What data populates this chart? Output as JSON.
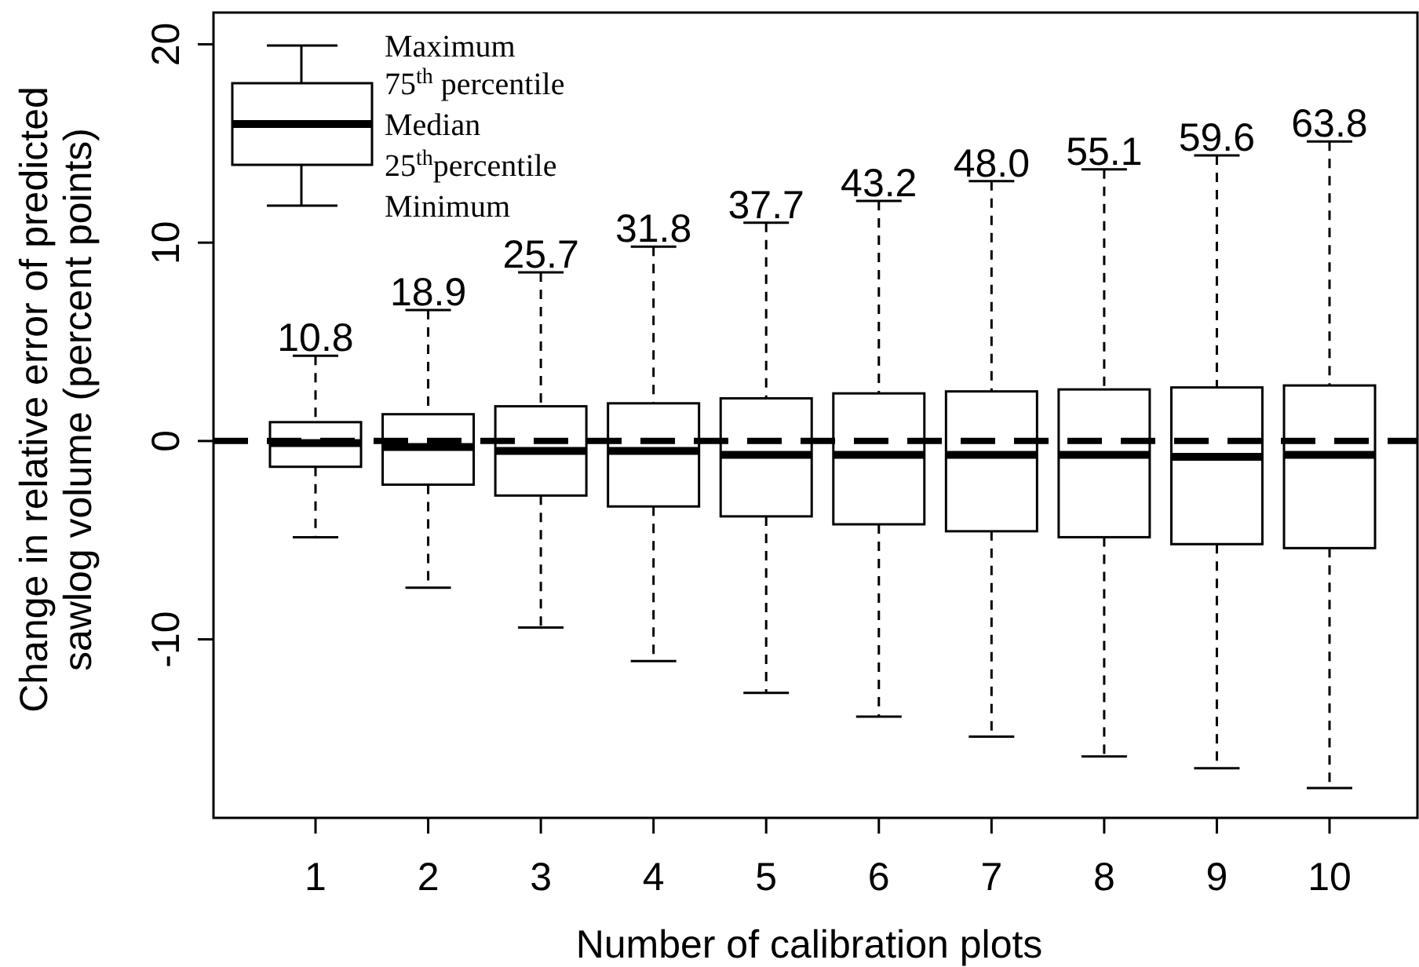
{
  "chart_data": {
    "type": "box",
    "xlabel": "Number of calibration plots",
    "ylabel": "Change in relative error of predicted\nsawlog volume (percent points)",
    "categories": [
      "1",
      "2",
      "3",
      "4",
      "5",
      "6",
      "7",
      "8",
      "9",
      "10"
    ],
    "boxes": [
      {
        "low": -4.85,
        "q1": -1.3,
        "median": -0.1,
        "q3": 0.95,
        "high": 4.3
      },
      {
        "low": -7.4,
        "q1": -2.2,
        "median": -0.3,
        "q3": 1.35,
        "high": 6.6
      },
      {
        "low": -9.4,
        "q1": -2.75,
        "median": -0.5,
        "q3": 1.75,
        "high": 8.5
      },
      {
        "low": -11.1,
        "q1": -3.3,
        "median": -0.5,
        "q3": 1.9,
        "high": 9.8
      },
      {
        "low": -12.7,
        "q1": -3.8,
        "median": -0.7,
        "q3": 2.15,
        "high": 11.0
      },
      {
        "low": -13.9,
        "q1": -4.2,
        "median": -0.7,
        "q3": 2.4,
        "high": 12.1
      },
      {
        "low": -14.9,
        "q1": -4.55,
        "median": -0.7,
        "q3": 2.5,
        "high": 13.1
      },
      {
        "low": -15.9,
        "q1": -4.85,
        "median": -0.7,
        "q3": 2.6,
        "high": 13.7
      },
      {
        "low": -16.5,
        "q1": -5.2,
        "median": -0.8,
        "q3": 2.7,
        "high": 14.4
      },
      {
        "low": -17.5,
        "q1": -5.4,
        "median": -0.7,
        "q3": 2.8,
        "high": 15.1
      }
    ],
    "color": "#000000",
    "ylim": [
      -19,
      21.6
    ],
    "yticks": [
      -10,
      0,
      10,
      20
    ],
    "grid": false,
    "ref_lines": [
      {
        "axis": "y",
        "value": 0,
        "line_style": "dashed",
        "color": "#000000"
      }
    ],
    "annotations": [
      {
        "text": "10.8",
        "x": "1",
        "y": 4.3
      },
      {
        "text": "18.9",
        "x": "2",
        "y": 6.6
      },
      {
        "text": "25.7",
        "x": "3",
        "y": 8.5
      },
      {
        "text": "31.8",
        "x": "4",
        "y": 9.8
      },
      {
        "text": "37.7",
        "x": "5",
        "y": 11.0
      },
      {
        "text": "43.2",
        "x": "6",
        "y": 12.1
      },
      {
        "text": "48.0",
        "x": "7",
        "y": 13.1
      },
      {
        "text": "55.1",
        "x": "8",
        "y": 13.7
      },
      {
        "text": "59.6",
        "x": "9",
        "y": 14.4
      },
      {
        "text": "63.8",
        "x": "10",
        "y": 15.1
      },
      "Maximum",
      "75$^{th}$ percentile",
      "Median",
      "25$^{th}$percentile",
      "Minimum"
    ]
  }
}
